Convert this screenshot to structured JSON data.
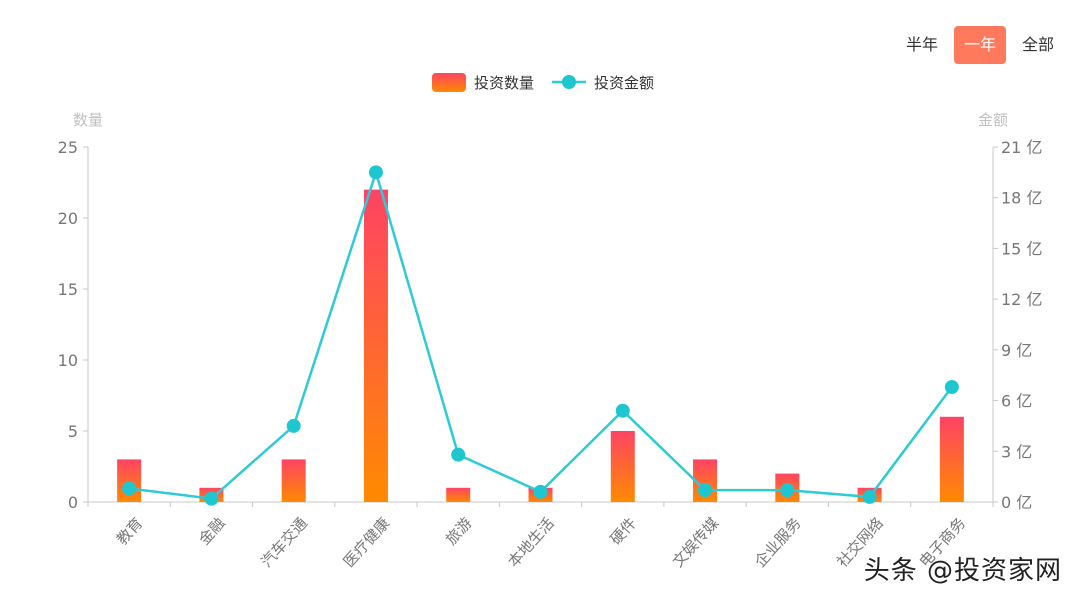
{
  "tabs": {
    "half_year": "半年",
    "one_year": "一年",
    "all": "全部",
    "active": "one_year"
  },
  "watermark": "头条 @投资家网",
  "colors": {
    "bar_top": "#ff4364",
    "bar_bottom": "#ff8a00",
    "line": "#2ecad6",
    "point": "#1ec7d0",
    "axis": "#c8c8c8",
    "tick_text": "#777777",
    "axis_name": "#c0c0c0"
  },
  "chart_data": {
    "type": "bar",
    "categories": [
      "教育",
      "金融",
      "汽车交通",
      "医疗健康",
      "旅游",
      "本地生活",
      "硬件",
      "文娱传媒",
      "企业服务",
      "社交网络",
      "电子商务"
    ],
    "series": [
      {
        "name": "投资数量",
        "type": "bar",
        "axis": "left",
        "values": [
          3,
          1,
          3,
          22,
          1,
          1,
          5,
          3,
          2,
          1,
          6
        ]
      },
      {
        "name": "投资金额",
        "type": "line",
        "axis": "right",
        "values": [
          0.8,
          0.2,
          4.5,
          19.5,
          2.8,
          0.6,
          5.4,
          0.7,
          0.7,
          0.3,
          6.8
        ]
      }
    ],
    "left_axis": {
      "name": "数量",
      "min": 0,
      "max": 25,
      "ticks": [
        "0",
        "5",
        "10",
        "15",
        "20",
        "25"
      ]
    },
    "right_axis": {
      "name": "金额",
      "min": 0,
      "max": 21,
      "ticks": [
        "0 亿",
        "3 亿",
        "6 亿",
        "9 亿",
        "12 亿",
        "15 亿",
        "18 亿",
        "21 亿"
      ]
    },
    "legend_position": "top-center",
    "grid": false
  }
}
